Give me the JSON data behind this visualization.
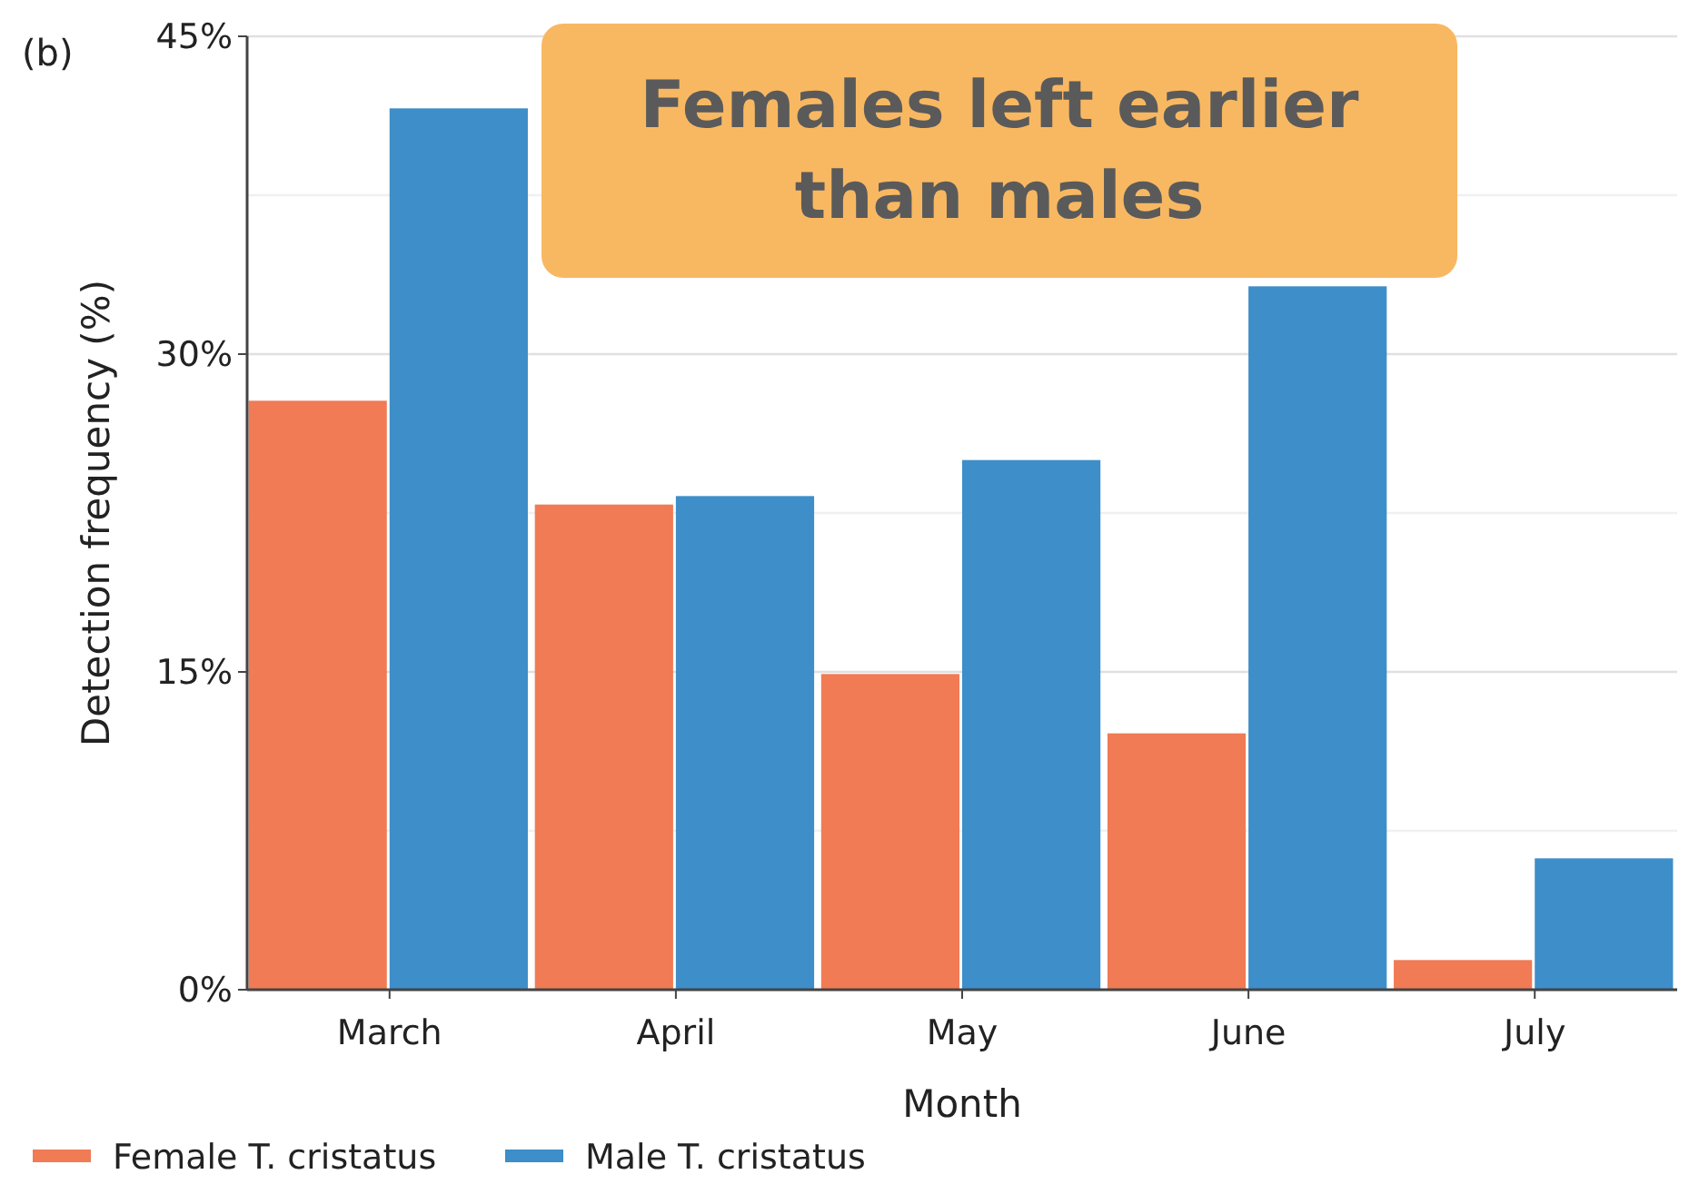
{
  "chart_data": {
    "type": "bar",
    "xlabel": "Month",
    "ylabel": "Detection frequency (%)",
    "categories": [
      "March",
      "April",
      "May",
      "June",
      "July"
    ],
    "series": [
      {
        "name": "Female T. cristatus",
        "color": "#f07b55",
        "values": [
          27.8,
          22.9,
          14.9,
          12.1,
          1.4
        ]
      },
      {
        "name": "Male T. cristatus",
        "color": "#3d8ec9",
        "values": [
          41.6,
          23.3,
          25.0,
          33.2,
          6.2
        ]
      }
    ],
    "ylim": [
      0,
      45
    ],
    "yticks": [
      {
        "value": 0,
        "label": "0%"
      },
      {
        "value": 7.5,
        "label": null
      },
      {
        "value": 15,
        "label": "15%"
      },
      {
        "value": 22.5,
        "label": null
      },
      {
        "value": 30,
        "label": "30%"
      },
      {
        "value": 37.5,
        "label": null
      },
      {
        "value": 45,
        "label": "45%"
      }
    ],
    "grid": "y",
    "legend": "bottom",
    "annotations": [
      "(b)",
      "Females left earlier than males"
    ]
  }
}
